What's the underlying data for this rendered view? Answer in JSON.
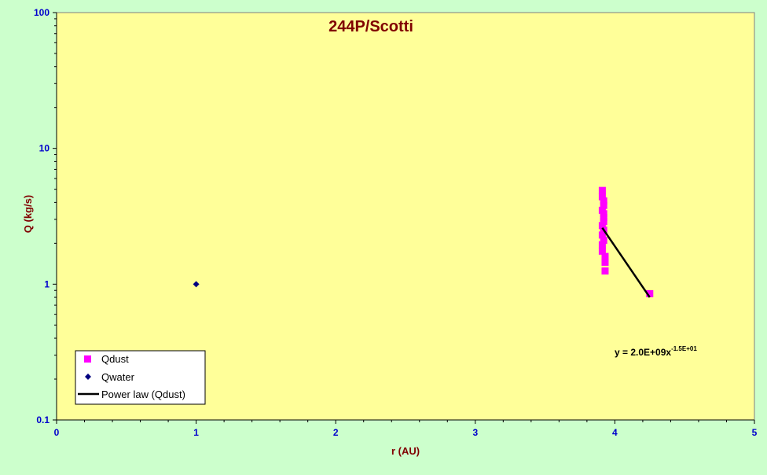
{
  "chart_data": {
    "type": "scatter",
    "title": "244P/Scotti",
    "xlabel": "r (AU)",
    "ylabel": "Q (kg/s)",
    "x_scale": "linear",
    "y_scale": "log",
    "xlim": [
      0,
      5
    ],
    "ylim": [
      0.1,
      100
    ],
    "x_ticks": [
      "0",
      "1",
      "2",
      "3",
      "4",
      "5"
    ],
    "y_ticks": [
      "0.1",
      "1",
      "10",
      "100"
    ],
    "grid": false,
    "legend_position": "bottom-left",
    "series": [
      {
        "name": "Qdust",
        "marker": "square",
        "color": "#ff00ff",
        "points": [
          [
            3.91,
            4.9
          ],
          [
            3.91,
            4.4
          ],
          [
            3.92,
            4.1
          ],
          [
            3.92,
            3.8
          ],
          [
            3.91,
            3.5
          ],
          [
            3.92,
            3.3
          ],
          [
            3.92,
            3.1
          ],
          [
            3.92,
            2.9
          ],
          [
            3.91,
            2.7
          ],
          [
            3.92,
            2.5
          ],
          [
            3.91,
            2.3
          ],
          [
            3.92,
            2.1
          ],
          [
            3.91,
            1.95
          ],
          [
            3.91,
            1.75
          ],
          [
            3.93,
            1.6
          ],
          [
            3.93,
            1.45
          ],
          [
            3.93,
            1.25
          ],
          [
            4.25,
            0.85
          ]
        ]
      },
      {
        "name": "Qwater",
        "marker": "diamond",
        "color": "#000080",
        "points": [
          [
            1.0,
            1.0
          ]
        ]
      },
      {
        "name": "Power law (Qdust)",
        "marker": "line",
        "color": "#000000",
        "points": [
          [
            3.91,
            2.6
          ],
          [
            4.25,
            0.8
          ]
        ]
      }
    ],
    "annotation": {
      "text": "y = 2.0E+09x",
      "exponent": "-1.5E+01",
      "position": "right"
    },
    "colors": {
      "page_background": "#ccffcc",
      "plot_background": "#ffff99",
      "title_color": "#800000",
      "axis_label_color": "#800000",
      "tick_label_color": "#0000cc"
    }
  }
}
